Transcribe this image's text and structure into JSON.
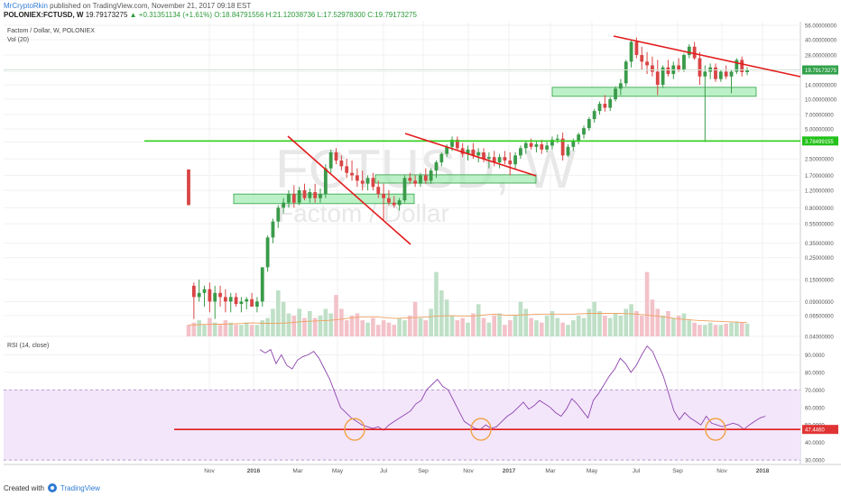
{
  "header": {
    "author": "MrCryptoRkin",
    "published": "published on TradingView.com, November 21, 2017 09:18 EST",
    "symbol": "POLONIEX:FCTUSD, W",
    "last": "19.79173275",
    "change": "▲ +0.31351134 (+1.61%)",
    "ohlc": "O:18.84791556 H:21.12038736 L:17.52978300 C:19.79173275"
  },
  "pane_labels": {
    "series": "Factom / Dollar, W, POLONIEX",
    "volume": "Vol (20)",
    "rsi": "RSI (14, close)"
  },
  "watermark": {
    "ticker": "FCTUSD, W",
    "name": "Factom / Dollar"
  },
  "footer": {
    "created_with": "Created with",
    "brand": "TradingView"
  },
  "colors": {
    "up": "#3a9b4a",
    "down": "#d94545",
    "trendline": "#e31b1b",
    "support": "#35d11e",
    "zone_fill": "#a6ecb4",
    "zone_stroke": "#2ea043",
    "rsi_line": "#8e44ad",
    "rsi_band": "#f3e6fb",
    "vol_ma": "#f0a060",
    "circle": "#f0a040",
    "price_badge": "#31a14a",
    "rsi_badge": "#e03434"
  },
  "chart_data": [
    {
      "type": "candlestick",
      "scale": "log",
      "x_ticks": [
        "Nov",
        "2016",
        "Mar",
        "May",
        "Jul",
        "Sep",
        "Nov",
        "2017",
        "Mar",
        "May",
        "Jul",
        "Sep",
        "Nov",
        "2018"
      ],
      "y_ticks": [
        "0.04000000",
        "0.06500000",
        "0.09000000",
        "0.15000000",
        "0.25000000",
        "0.35000000",
        "0.55000000",
        "0.80000000",
        "1.20000000",
        "1.70000000",
        "2.50000000",
        "3.70000000",
        "5.00000000",
        "7.00000000",
        "10.00000000",
        "14.00000000",
        "19.00000000",
        "28.00000000",
        "40.00000000",
        "56.00000000"
      ],
      "last_price_label": "19.79173275",
      "support_price_label": "3.78499155",
      "support_level": 3.785,
      "ylim": [
        0.04,
        56
      ],
      "ohlc": [
        [
          1.95,
          1.95,
          0.85,
          0.85
        ],
        [
          0.13,
          0.14,
          0.06,
          0.1
        ],
        [
          0.1,
          0.15,
          0.09,
          0.11
        ],
        [
          0.11,
          0.13,
          0.08,
          0.12
        ],
        [
          0.12,
          0.14,
          0.07,
          0.09
        ],
        [
          0.09,
          0.13,
          0.06,
          0.11
        ],
        [
          0.11,
          0.13,
          0.08,
          0.1
        ],
        [
          0.1,
          0.12,
          0.07,
          0.09
        ],
        [
          0.09,
          0.11,
          0.07,
          0.1
        ],
        [
          0.1,
          0.11,
          0.08,
          0.085
        ],
        [
          0.085,
          0.1,
          0.07,
          0.09
        ],
        [
          0.09,
          0.1,
          0.075,
          0.095
        ],
        [
          0.095,
          0.11,
          0.08,
          0.08
        ],
        [
          0.08,
          0.1,
          0.07,
          0.09
        ],
        [
          0.09,
          0.12,
          0.08,
          0.2
        ],
        [
          0.2,
          0.42,
          0.18,
          0.4
        ],
        [
          0.4,
          0.62,
          0.35,
          0.58
        ],
        [
          0.58,
          0.85,
          0.5,
          0.8
        ],
        [
          0.8,
          1.0,
          0.7,
          0.9
        ],
        [
          0.9,
          1.2,
          0.8,
          1.1
        ],
        [
          1.1,
          1.35,
          0.8,
          0.9
        ],
        [
          0.9,
          1.3,
          0.85,
          1.2
        ],
        [
          1.2,
          1.4,
          0.95,
          1.0
        ],
        [
          1.0,
          1.25,
          0.9,
          1.15
        ],
        [
          1.15,
          1.4,
          0.9,
          1.0
        ],
        [
          1.0,
          1.25,
          0.9,
          1.1
        ],
        [
          1.1,
          2.2,
          1.0,
          2.0
        ],
        [
          2.0,
          3.1,
          1.8,
          2.9
        ],
        [
          2.9,
          3.2,
          2.2,
          2.4
        ],
        [
          2.4,
          2.7,
          1.9,
          2.1
        ],
        [
          2.1,
          2.5,
          1.6,
          1.8
        ],
        [
          1.8,
          2.4,
          1.5,
          1.7
        ],
        [
          1.7,
          2.0,
          1.3,
          1.5
        ],
        [
          1.5,
          1.9,
          1.2,
          1.4
        ],
        [
          1.4,
          1.7,
          1.2,
          1.6
        ],
        [
          1.6,
          1.8,
          1.2,
          1.3
        ],
        [
          1.3,
          1.5,
          1.0,
          1.1
        ],
        [
          1.1,
          1.4,
          0.6,
          1.0
        ],
        [
          1.0,
          1.2,
          0.85,
          0.9
        ],
        [
          0.9,
          1.05,
          0.8,
          0.85
        ],
        [
          0.85,
          1.0,
          0.75,
          0.95
        ],
        [
          0.95,
          1.7,
          0.9,
          1.6
        ],
        [
          1.6,
          1.8,
          1.4,
          1.5
        ],
        [
          1.5,
          1.7,
          1.3,
          1.4
        ],
        [
          1.4,
          1.8,
          1.3,
          1.7
        ],
        [
          1.7,
          2.0,
          1.4,
          1.5
        ],
        [
          1.5,
          2.0,
          1.4,
          1.9
        ],
        [
          1.9,
          2.4,
          1.6,
          2.3
        ],
        [
          2.3,
          2.9,
          2.1,
          2.8
        ],
        [
          2.8,
          3.5,
          2.6,
          3.3
        ],
        [
          3.3,
          4.2,
          3.0,
          3.9
        ],
        [
          3.9,
          4.2,
          3.0,
          3.2
        ],
        [
          3.2,
          3.6,
          2.6,
          2.8
        ],
        [
          2.8,
          3.4,
          2.4,
          3.1
        ],
        [
          3.1,
          3.6,
          2.5,
          2.7
        ],
        [
          2.7,
          3.2,
          2.3,
          2.9
        ],
        [
          2.9,
          3.2,
          2.3,
          2.5
        ],
        [
          2.5,
          2.9,
          2.0,
          2.6
        ],
        [
          2.6,
          3.0,
          2.1,
          2.3
        ],
        [
          2.3,
          2.8,
          2.0,
          2.6
        ],
        [
          2.6,
          3.0,
          2.2,
          2.4
        ],
        [
          2.4,
          2.9,
          1.7,
          2.2
        ],
        [
          2.2,
          2.9,
          2.0,
          2.7
        ],
        [
          2.7,
          3.4,
          2.5,
          3.2
        ],
        [
          3.2,
          3.8,
          2.8,
          3.6
        ],
        [
          3.6,
          4.0,
          3.1,
          3.3
        ],
        [
          3.3,
          3.8,
          2.9,
          3.5
        ],
        [
          3.5,
          3.9,
          2.8,
          3.1
        ],
        [
          3.1,
          3.7,
          2.9,
          3.4
        ],
        [
          3.4,
          4.2,
          3.1,
          3.9
        ],
        [
          3.9,
          4.4,
          3.6,
          4.0
        ],
        [
          4.0,
          4.6,
          2.4,
          2.7
        ],
        [
          2.7,
          3.5,
          2.6,
          3.3
        ],
        [
          3.3,
          4.0,
          3.0,
          3.8
        ],
        [
          3.8,
          4.6,
          3.5,
          4.4
        ],
        [
          4.4,
          5.4,
          4.0,
          5.1
        ],
        [
          5.1,
          6.6,
          4.8,
          6.3
        ],
        [
          6.3,
          8.0,
          5.8,
          7.6
        ],
        [
          7.6,
          9.5,
          7.0,
          9.0
        ],
        [
          9.0,
          11.0,
          7.5,
          8.2
        ],
        [
          8.2,
          10.5,
          7.6,
          10.0
        ],
        [
          10.0,
          13.5,
          9.5,
          12.8
        ],
        [
          12.8,
          16.0,
          11.0,
          14.5
        ],
        [
          14.5,
          25.0,
          13.5,
          24.0
        ],
        [
          24.0,
          40.0,
          21.0,
          38.0
        ],
        [
          38.0,
          42.0,
          26.0,
          28.0
        ],
        [
          28.0,
          34.0,
          20.0,
          24.0
        ],
        [
          24.0,
          30.0,
          18.0,
          22.0
        ],
        [
          22.0,
          27.0,
          17.0,
          19.0
        ],
        [
          19.0,
          25.0,
          11.0,
          14.0
        ],
        [
          14.0,
          22.0,
          13.0,
          21.0
        ],
        [
          21.0,
          25.0,
          17.0,
          18.0
        ],
        [
          18.0,
          24.0,
          16.0,
          22.0
        ],
        [
          22.0,
          26.0,
          19.0,
          20.0
        ],
        [
          20.0,
          29.0,
          19.0,
          28.0
        ],
        [
          28.0,
          36.0,
          26.0,
          34.0
        ],
        [
          34.0,
          38.0,
          25.0,
          26.0
        ],
        [
          26.0,
          30.0,
          14.0,
          17.0
        ],
        [
          17.0,
          22.0,
          3.7,
          19.0
        ],
        [
          19.0,
          23.0,
          16.0,
          21.0
        ],
        [
          21.0,
          23.0,
          15.0,
          16.0
        ],
        [
          16.0,
          20.0,
          15.0,
          19.0
        ],
        [
          19.0,
          22.0,
          16.0,
          17.0
        ],
        [
          17.0,
          20.0,
          11.5,
          19.0
        ],
        [
          19.0,
          26.0,
          18.0,
          25.0
        ],
        [
          25.0,
          27.0,
          17.0,
          18.8
        ],
        [
          18.8,
          21.1,
          17.5,
          19.8
        ]
      ],
      "volume_ma": [
        0.05,
        0.05,
        0.051,
        0.052,
        0.052,
        0.053,
        0.053,
        0.053,
        0.054,
        0.055,
        0.056,
        0.058,
        0.059,
        0.058,
        0.057,
        0.057,
        0.056,
        0.057,
        0.058,
        0.059,
        0.061,
        0.063,
        0.065,
        0.066,
        0.067,
        0.068,
        0.069,
        0.07,
        0.072,
        0.075,
        0.078,
        0.081,
        0.083,
        0.084,
        0.085,
        0.085,
        0.084,
        0.082,
        0.08,
        0.079,
        0.079,
        0.08,
        0.081,
        0.082,
        0.083,
        0.084,
        0.086,
        0.088,
        0.089,
        0.09,
        0.09,
        0.089,
        0.088,
        0.088,
        0.089,
        0.091,
        0.093,
        0.095,
        0.096,
        0.095,
        0.093,
        0.092,
        0.092,
        0.093,
        0.094,
        0.095,
        0.096,
        0.097,
        0.097,
        0.097,
        0.097,
        0.097,
        0.097,
        0.097,
        0.098,
        0.099,
        0.1,
        0.1,
        0.1,
        0.1,
        0.1,
        0.1,
        0.1,
        0.099,
        0.098,
        0.097,
        0.095,
        0.093,
        0.09,
        0.088,
        0.085,
        0.082,
        0.079,
        0.076,
        0.074,
        0.072,
        0.07,
        0.069,
        0.068,
        0.067,
        0.066,
        0.065,
        0.064,
        0.063,
        0.062,
        0.061,
        0.06
      ]
    },
    {
      "type": "bar",
      "name": "Vol (20)",
      "values": [
        0.05,
        0.06,
        0.07,
        0.05,
        0.08,
        0.06,
        0.05,
        0.07,
        0.06,
        0.05,
        0.05,
        0.06,
        0.05,
        0.05,
        0.07,
        0.08,
        0.12,
        0.2,
        0.15,
        0.1,
        0.09,
        0.12,
        0.08,
        0.11,
        0.08,
        0.09,
        0.12,
        0.1,
        0.18,
        0.12,
        0.07,
        0.09,
        0.1,
        0.07,
        0.06,
        0.08,
        0.05,
        0.07,
        0.06,
        0.05,
        0.08,
        0.07,
        0.09,
        0.15,
        0.08,
        0.07,
        0.12,
        0.28,
        0.2,
        0.16,
        0.09,
        0.07,
        0.08,
        0.06,
        0.1,
        0.14,
        0.08,
        0.06,
        0.09,
        0.1,
        0.05,
        0.07,
        0.09,
        0.15,
        0.12,
        0.08,
        0.07,
        0.06,
        0.09,
        0.11,
        0.08,
        0.06,
        0.05,
        0.07,
        0.09,
        0.08,
        0.12,
        0.15,
        0.11,
        0.09,
        0.08,
        0.1,
        0.09,
        0.12,
        0.14,
        0.11,
        0.09,
        0.28,
        0.16,
        0.12,
        0.09,
        0.11,
        0.08,
        0.09,
        0.1,
        0.07,
        0.06,
        0.05,
        0.05,
        0.06,
        0.05,
        0.05,
        0.055,
        0.06,
        0.065,
        0.06,
        0.055
      ]
    },
    {
      "type": "line",
      "name": "RSI (14, close)",
      "y_ticks": [
        "30.0000",
        "40.0000",
        "50.0000",
        "60.0000",
        "70.0000",
        "80.0000",
        "90.0000"
      ],
      "last_value_label": "47.4460",
      "ylim": [
        28,
        100
      ],
      "overbought": 70,
      "oversold": 30,
      "support_level": 47.45,
      "values": [
        93,
        91,
        93,
        85,
        90,
        84,
        82,
        87,
        89,
        90,
        92,
        88,
        82,
        76,
        68,
        60,
        57,
        54,
        52,
        50,
        49,
        48,
        49,
        47,
        50,
        52,
        54,
        56,
        58,
        62,
        64,
        70,
        73,
        76,
        72,
        70,
        64,
        58,
        52,
        50,
        48,
        47.5,
        50,
        48,
        49,
        52,
        55,
        57,
        60,
        63,
        59,
        61,
        64,
        62,
        60,
        57,
        55,
        59,
        65,
        62,
        58,
        54,
        64,
        68,
        73,
        78,
        82,
        88,
        85,
        80,
        84,
        90,
        95,
        92,
        85,
        78,
        68,
        58,
        53,
        57,
        54,
        52,
        50,
        55,
        51,
        50,
        49,
        50,
        51,
        50,
        47.5,
        50,
        52,
        54,
        55
      ]
    }
  ]
}
